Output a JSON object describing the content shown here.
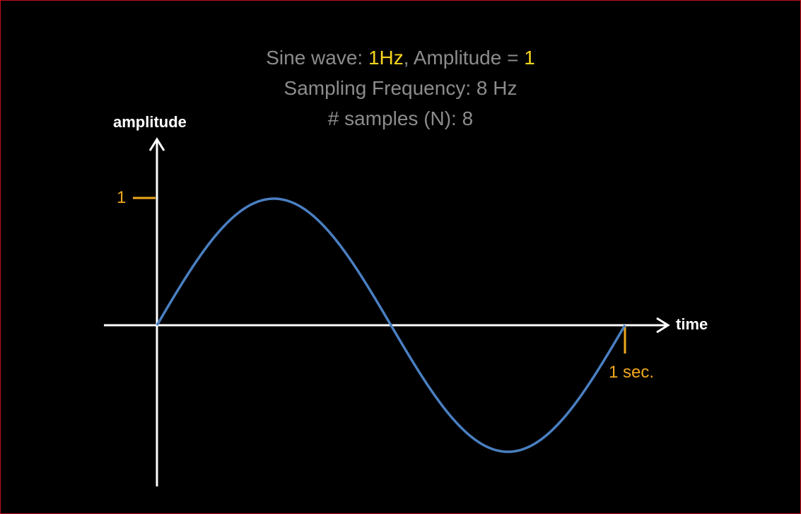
{
  "header": {
    "line1_prefix": "Sine wave: ",
    "line1_freq": "1Hz",
    "line1_mid": ", Amplitude = ",
    "line1_amp": "1",
    "line2": "Sampling Frequency: 8 Hz",
    "line3": "# samples (N): 8"
  },
  "axes": {
    "y_label": "amplitude",
    "x_label": "time",
    "y_tick_label": "1",
    "x_tick_label": "1 sec."
  },
  "colors": {
    "background": "#000000",
    "axis": "#ffffff",
    "wave": "#4a7fc1",
    "tick": "#f0a81e",
    "highlight": "#f5d51e",
    "text": "#8c8c8c"
  },
  "chart_data": {
    "type": "line",
    "function": "sine",
    "frequency_hz": 1,
    "amplitude": 1,
    "x": [
      0,
      0.125,
      0.25,
      0.375,
      0.5,
      0.625,
      0.75,
      0.875,
      1.0
    ],
    "y": [
      0,
      0.7071,
      1,
      0.7071,
      0,
      -0.7071,
      -1,
      -0.7071,
      0
    ],
    "xlim": [
      0,
      1
    ],
    "ylim": [
      -1,
      1
    ],
    "xlabel": "time",
    "ylabel": "amplitude",
    "x_tick": "1 sec.",
    "y_tick": "1"
  }
}
